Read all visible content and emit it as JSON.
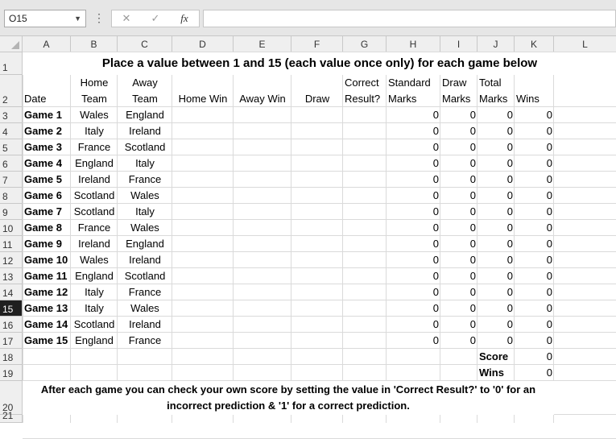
{
  "name_box": "O15",
  "formula_bar": {
    "cancel_icon": "✕",
    "enter_icon": "✓",
    "fx_label": "fx"
  },
  "columns": [
    "A",
    "B",
    "C",
    "D",
    "E",
    "F",
    "G",
    "H",
    "I",
    "J",
    "K",
    "L"
  ],
  "rows": [
    "1",
    "2",
    "3",
    "4",
    "5",
    "6",
    "7",
    "8",
    "9",
    "10",
    "11",
    "12",
    "13",
    "14",
    "15",
    "16",
    "17",
    "18",
    "19",
    "20",
    "21"
  ],
  "selected_row": "15",
  "title": "Place a value between 1 and 15 (each value once only) for each game below",
  "headers": {
    "date": "Date",
    "home_team": [
      "Home",
      "Team"
    ],
    "away_team": [
      "Away",
      "Team"
    ],
    "home_win": "Home Win",
    "away_win": "Away Win",
    "draw": "Draw",
    "correct_result": [
      "Correct",
      "Result?"
    ],
    "standard_marks": [
      "Standard",
      "Marks"
    ],
    "draw_marks": [
      "Draw",
      "Marks"
    ],
    "total_marks": [
      "Total",
      "Marks"
    ],
    "wins": "Wins"
  },
  "games": [
    {
      "game": "Game 1",
      "home": "Wales",
      "away": "England",
      "standard": "0",
      "draw": "0",
      "total": "0",
      "wins": "0"
    },
    {
      "game": "Game 2",
      "home": "Italy",
      "away": "Ireland",
      "standard": "0",
      "draw": "0",
      "total": "0",
      "wins": "0"
    },
    {
      "game": "Game 3",
      "home": "France",
      "away": "Scotland",
      "standard": "0",
      "draw": "0",
      "total": "0",
      "wins": "0"
    },
    {
      "game": "Game 4",
      "home": "England",
      "away": "Italy",
      "standard": "0",
      "draw": "0",
      "total": "0",
      "wins": "0"
    },
    {
      "game": "Game 5",
      "home": "Ireland",
      "away": "France",
      "standard": "0",
      "draw": "0",
      "total": "0",
      "wins": "0"
    },
    {
      "game": "Game 6",
      "home": "Scotland",
      "away": "Wales",
      "standard": "0",
      "draw": "0",
      "total": "0",
      "wins": "0"
    },
    {
      "game": "Game 7",
      "home": "Scotland",
      "away": "Italy",
      "standard": "0",
      "draw": "0",
      "total": "0",
      "wins": "0"
    },
    {
      "game": "Game 8",
      "home": "France",
      "away": "Wales",
      "standard": "0",
      "draw": "0",
      "total": "0",
      "wins": "0"
    },
    {
      "game": "Game 9",
      "home": "Ireland",
      "away": "England",
      "standard": "0",
      "draw": "0",
      "total": "0",
      "wins": "0"
    },
    {
      "game": "Game 10",
      "home": "Wales",
      "away": "Ireland",
      "standard": "0",
      "draw": "0",
      "total": "0",
      "wins": "0"
    },
    {
      "game": "Game 11",
      "home": "England",
      "away": "Scotland",
      "standard": "0",
      "draw": "0",
      "total": "0",
      "wins": "0"
    },
    {
      "game": "Game 12",
      "home": "Italy",
      "away": "France",
      "standard": "0",
      "draw": "0",
      "total": "0",
      "wins": "0"
    },
    {
      "game": "Game 13",
      "home": "Italy",
      "away": "Wales",
      "standard": "0",
      "draw": "0",
      "total": "0",
      "wins": "0"
    },
    {
      "game": "Game 14",
      "home": "Scotland",
      "away": "Ireland",
      "standard": "0",
      "draw": "0",
      "total": "0",
      "wins": "0"
    },
    {
      "game": "Game 15",
      "home": "England",
      "away": "France",
      "standard": "0",
      "draw": "0",
      "total": "0",
      "wins": "0"
    }
  ],
  "summary": {
    "score_label": "Score",
    "score_value": "0",
    "wins_label": "Wins",
    "wins_value": "0"
  },
  "footer_note": "After each game you can check your own score by setting the value in 'Correct Result?' to '0' for an incorrect prediction & '1'  for a correct prediction."
}
